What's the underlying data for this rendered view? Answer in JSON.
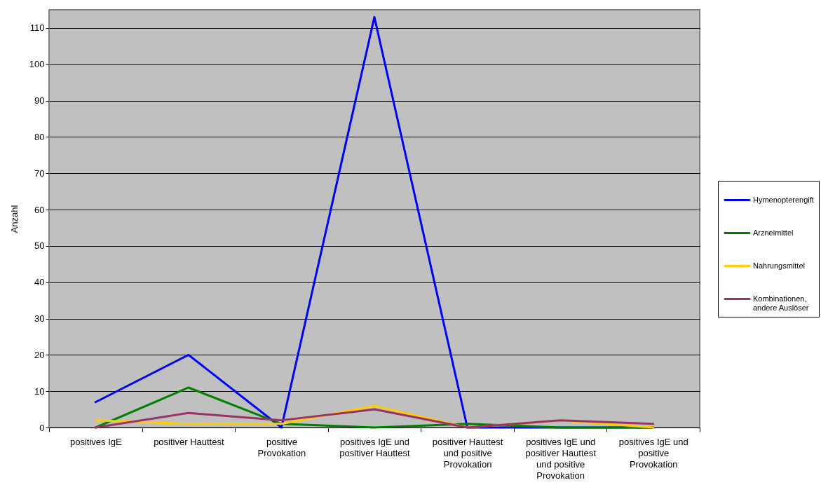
{
  "chart_data": {
    "type": "line",
    "categories": [
      "positives IgE",
      "positiver Hauttest",
      "positive Provokation",
      "positives IgE und positiver Hauttest",
      "positiver Hauttest und positive Provokation",
      "positives IgE und positiver Hauttest und positive Provokation",
      "positives IgE und positive Provokation"
    ],
    "series": [
      {
        "name": "Hymenopterengift",
        "color": "#0000ff",
        "values": [
          7,
          20,
          0,
          113,
          0,
          0,
          0
        ]
      },
      {
        "name": "Arzneimittel",
        "color": "#008000",
        "values": [
          0,
          11,
          1,
          0,
          1,
          0,
          0
        ]
      },
      {
        "name": "Nahrungsmittel",
        "color": "#ffcc00",
        "values": [
          2,
          1,
          1,
          6,
          0,
          2,
          0
        ]
      },
      {
        "name": "Kombinationen, andere Auslöser",
        "color": "#993366",
        "values": [
          0,
          4,
          2,
          5,
          0,
          2,
          1
        ]
      }
    ],
    "ylabel": "Anzahl",
    "ylim": [
      0,
      115
    ],
    "yticks": [
      0,
      10,
      20,
      30,
      40,
      50,
      60,
      70,
      80,
      90,
      100,
      110
    ],
    "grid": "y",
    "legend": "right",
    "line_style": "solid"
  }
}
